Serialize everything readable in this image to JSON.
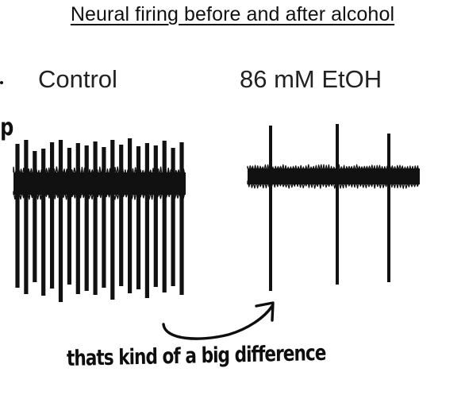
{
  "slide": {
    "title": "Neural firing before and after alcohol",
    "panels": [
      {
        "label": "Control",
        "spikes": 20
      },
      {
        "label": "86 mM EtOH",
        "spikes": 3
      }
    ],
    "annotation": {
      "text": "thats kind of a big difference",
      "margin_letter": "p"
    }
  },
  "colors": {
    "trace": "#111111",
    "ink": "#0e0e0e",
    "background": "#ffffff"
  }
}
